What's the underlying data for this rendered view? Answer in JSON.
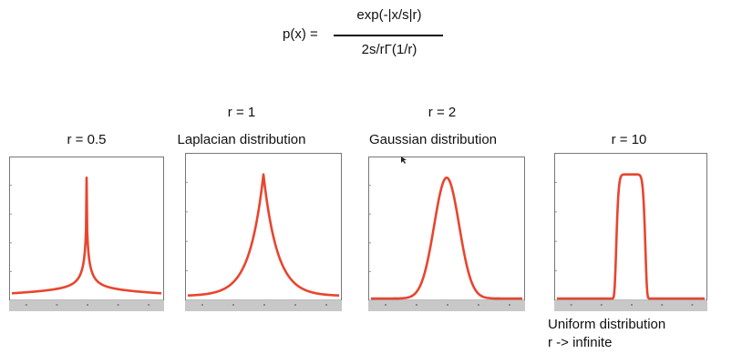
{
  "formula": {
    "lhs": "p(x) =",
    "numerator": "exp(-|x/s|r)",
    "denominator": "2s/rΓ(1/r)"
  },
  "panels": [
    {
      "title_line1": "r = 0.5",
      "title_line2": ""
    },
    {
      "title_line1": "r = 1",
      "title_line2": "Laplacian distribution"
    },
    {
      "title_line1": "r = 2",
      "title_line2": "Gaussian distribution"
    },
    {
      "title_line1": "r = 10",
      "title_line2": ""
    }
  ],
  "caption": {
    "line1": "Uniform distribution",
    "line2": "r -> infinite"
  },
  "chart_data": [
    {
      "type": "line",
      "r": 0.5,
      "x": [
        -3,
        -2,
        -1,
        -0.5,
        -0.2,
        0,
        0.2,
        0.5,
        1,
        2,
        3
      ],
      "y": [
        0.12,
        0.18,
        0.3,
        0.4,
        0.55,
        1.0,
        0.55,
        0.4,
        0.3,
        0.18,
        0.12
      ],
      "ylim": [
        0,
        1.1
      ],
      "color": "#e8452e"
    },
    {
      "type": "line",
      "r": 1,
      "x": [
        -3,
        -2,
        -1,
        -0.5,
        0,
        0.5,
        1,
        2,
        3
      ],
      "y": [
        0.03,
        0.07,
        0.25,
        0.48,
        1.0,
        0.48,
        0.25,
        0.07,
        0.03
      ],
      "ylim": [
        0,
        1.1
      ],
      "color": "#e8452e"
    },
    {
      "type": "line",
      "r": 2,
      "x": [
        -3,
        -2,
        -1,
        -0.5,
        0,
        0.5,
        1,
        2,
        3
      ],
      "y": [
        0,
        0,
        0.15,
        0.63,
        1.0,
        0.63,
        0.15,
        0,
        0
      ],
      "ylim": [
        0,
        1.1
      ],
      "color": "#e8452e"
    },
    {
      "type": "line",
      "r": 10,
      "x": [
        -3,
        -1,
        -0.6,
        -0.5,
        0,
        0.5,
        0.6,
        1,
        3
      ],
      "y": [
        0,
        0,
        0,
        1.0,
        1.0,
        1.0,
        0,
        0,
        0
      ],
      "ylim": [
        0,
        1.1
      ],
      "color": "#e8452e"
    }
  ],
  "colors": {
    "curve": "#e8452e",
    "axis": "#555555",
    "frame": "#777777",
    "xstrip": "#c8c8c8"
  }
}
